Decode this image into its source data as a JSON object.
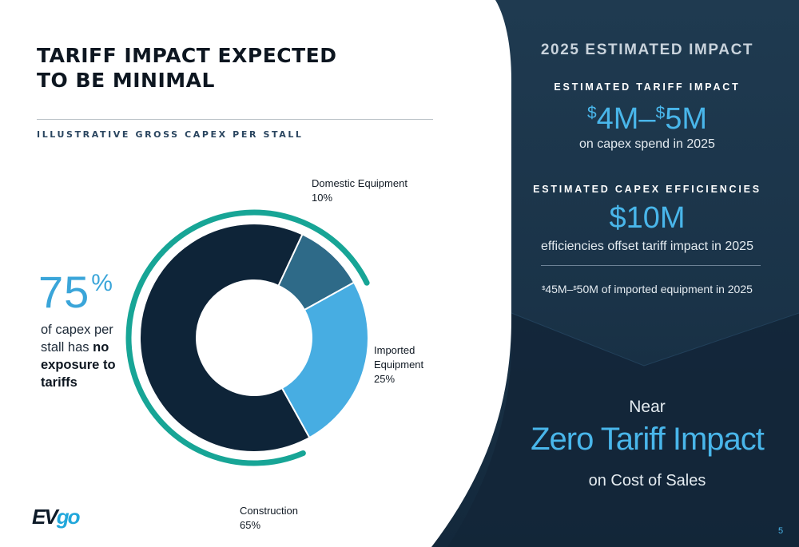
{
  "left": {
    "title": "TARIFF IMPACT EXPECTED TO BE MINIMAL",
    "subtitle": "ILLUSTRATIVE GROSS CAPEX PER STALL",
    "stat": {
      "value": "75",
      "unit": "%",
      "text_pre": "of capex per stall has",
      "text_bold": "no exposure to tariffs"
    },
    "logo": {
      "part1": "EV",
      "part2": "go"
    }
  },
  "chart_data": {
    "type": "pie",
    "donut": true,
    "categories": [
      "Domestic Equipment",
      "Imported Equipment",
      "Construction"
    ],
    "values": [
      10,
      25,
      65
    ],
    "value_labels": [
      "10%",
      "25%",
      "65%"
    ],
    "colors": [
      "#2e6a88",
      "#47ade2",
      "#0e2438"
    ],
    "accent_color": "#17a596",
    "accent_covers": [
      "Domestic Equipment",
      "Construction"
    ]
  },
  "right": {
    "heading": "2025 ESTIMATED IMPACT",
    "tariff": {
      "label": "ESTIMATED TARIFF IMPACT",
      "cur1": "$",
      "amt1": "4M",
      "sep": "–",
      "cur2": "$",
      "amt2": "5M",
      "caption": "on capex spend in 2025"
    },
    "efficiencies": {
      "label": "ESTIMATED CAPEX EFFICIENCIES",
      "value": "$10M",
      "caption": "efficiencies offset tariff impact in 2025"
    },
    "note": {
      "cur1": "$",
      "amt1": "45M",
      "sep": "–",
      "cur2": "$",
      "amt2": "50M",
      "text": " of imported equipment in 2025"
    },
    "near": "Near",
    "zero": "Zero Tariff Impact",
    "cost": "on Cost of Sales",
    "page_number": "5"
  }
}
